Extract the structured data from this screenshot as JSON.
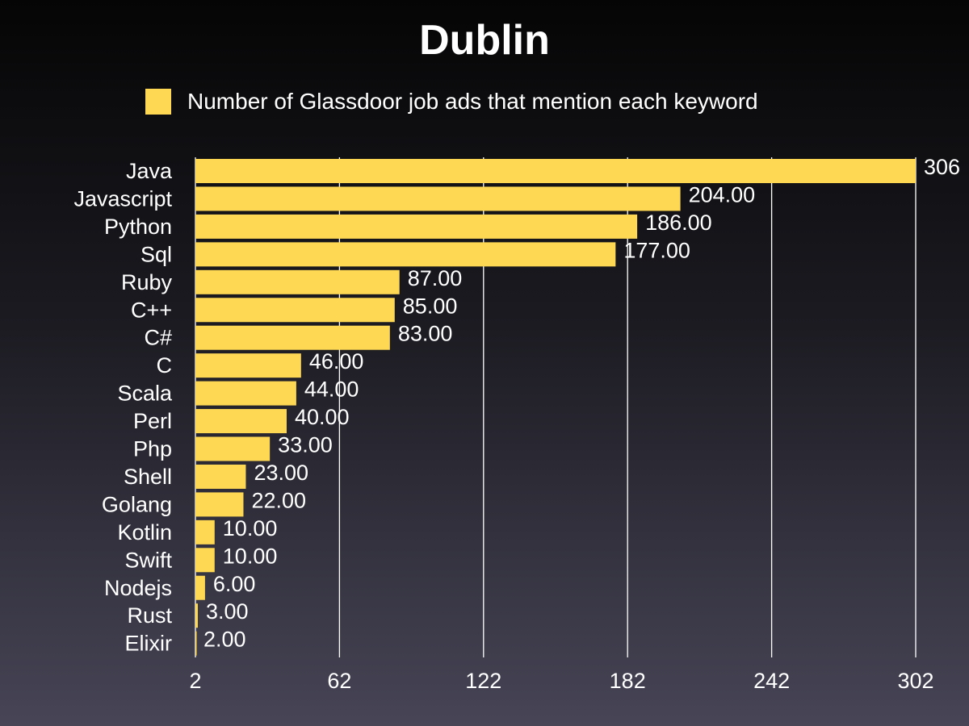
{
  "chart_data": {
    "type": "bar",
    "orientation": "horizontal",
    "title": "Dublin",
    "legend_position": "top",
    "series": [
      {
        "name": "Number of Glassdoor job ads that mention each keyword",
        "values": [
          306,
          204,
          186,
          177,
          87,
          85,
          83,
          46,
          44,
          40,
          33,
          23,
          22,
          10,
          10,
          6,
          3,
          2
        ],
        "value_labels": [
          "306",
          "204.00",
          "186.00",
          "177.00",
          "87.00",
          "85.00",
          "83.00",
          "46.00",
          "44.00",
          "40.00",
          "33.00",
          "23.00",
          "22.00",
          "10.00",
          "10.00",
          "6.00",
          "3.00",
          "2.00"
        ],
        "color": "#fed853"
      }
    ],
    "categories": [
      "Java",
      "Javascript",
      "Python",
      "Sql",
      "Ruby",
      "C++",
      "C#",
      "C",
      "Scala",
      "Perl",
      "Php",
      "Shell",
      "Golang",
      "Kotlin",
      "Swift",
      "Nodejs",
      "Rust",
      "Elixir"
    ],
    "xlim": [
      2,
      302
    ],
    "xticks": [
      "2",
      "62",
      "122",
      "182",
      "242",
      "302"
    ],
    "xtick_values": [
      2,
      62,
      122,
      182,
      242,
      302
    ],
    "grid": true,
    "xlabel": "",
    "ylabel": ""
  }
}
